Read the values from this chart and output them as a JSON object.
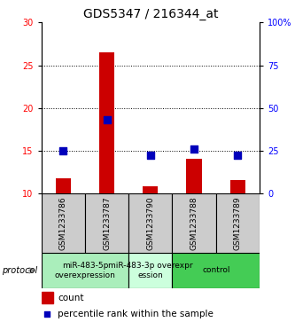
{
  "title": "GDS5347 / 216344_at",
  "samples": [
    "GSM1233786",
    "GSM1233787",
    "GSM1233790",
    "GSM1233788",
    "GSM1233789"
  ],
  "counts": [
    11.7,
    26.5,
    10.8,
    14.0,
    11.5
  ],
  "percentiles": [
    25,
    43,
    22,
    26,
    22
  ],
  "ylim_left": [
    10,
    30
  ],
  "ylim_right": [
    0,
    100
  ],
  "yticks_left": [
    10,
    15,
    20,
    25,
    30
  ],
  "yticks_right": [
    0,
    25,
    50,
    75,
    100
  ],
  "ytick_labels_right": [
    "0",
    "25",
    "50",
    "75",
    "100%"
  ],
  "bar_color": "#cc0000",
  "dot_color": "#0000bb",
  "groups": [
    {
      "label": "miR-483-5p\noverexpression",
      "start": 0,
      "end": 2,
      "color": "#aaeebb"
    },
    {
      "label": "miR-483-3p overexpr\nession",
      "start": 2,
      "end": 3,
      "color": "#ccffdd"
    },
    {
      "label": "control",
      "start": 3,
      "end": 5,
      "color": "#44cc55"
    }
  ],
  "protocol_label": "protocol",
  "legend_count_label": "count",
  "legend_pct_label": "percentile rank within the sample",
  "bar_width": 0.35,
  "dot_size": 28,
  "title_fontsize": 10,
  "tick_fontsize": 7,
  "sample_fontsize": 6.5,
  "group_fontsize": 6.5
}
